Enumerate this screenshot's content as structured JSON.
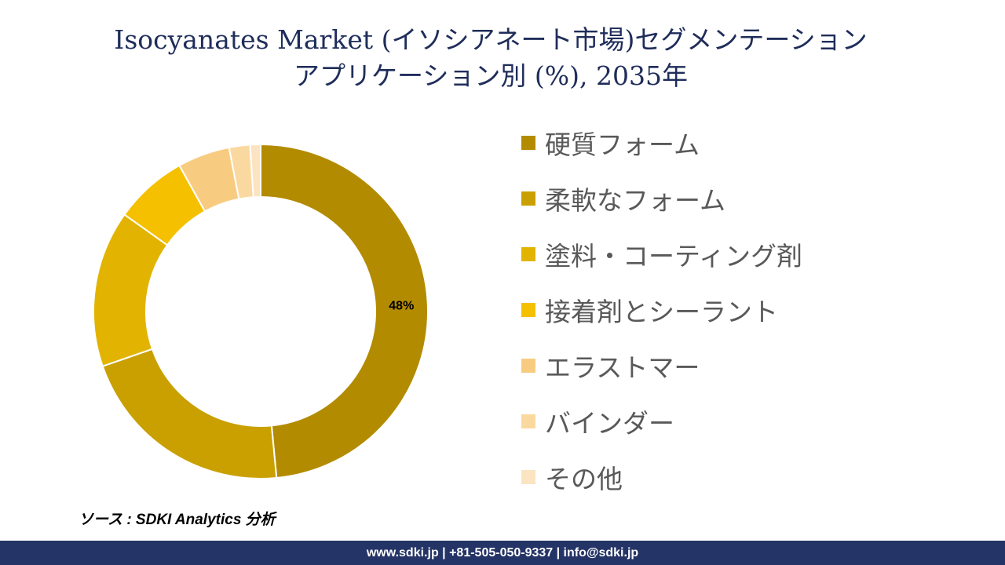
{
  "title": {
    "line1": "Isocyanates Market (イソシアネート市場)セグメンテーション",
    "line2": "アプリケーション別 (%), 2035年"
  },
  "chart_data": {
    "type": "pie",
    "variant": "donut",
    "categories": [
      "硬質フォーム",
      "柔軟なフォーム",
      "塗料・コーティング剤",
      "接着剤とシーラント",
      "エラストマー",
      "バインダー",
      "その他"
    ],
    "values": [
      48,
      21,
      15,
      7,
      5,
      2,
      1
    ],
    "data_labels": [
      "48%",
      "",
      "",
      "",
      "",
      "",
      ""
    ],
    "colors": [
      "#b38b00",
      "#c9a000",
      "#e2b300",
      "#f5c000",
      "#f8cc80",
      "#fad9a0",
      "#fbe4c2"
    ],
    "legend_position": "right"
  },
  "source": "ソース : SDKI Analytics 分析",
  "footer": "www.sdki.jp | +81-505-050-9337 | info@sdki.jp"
}
